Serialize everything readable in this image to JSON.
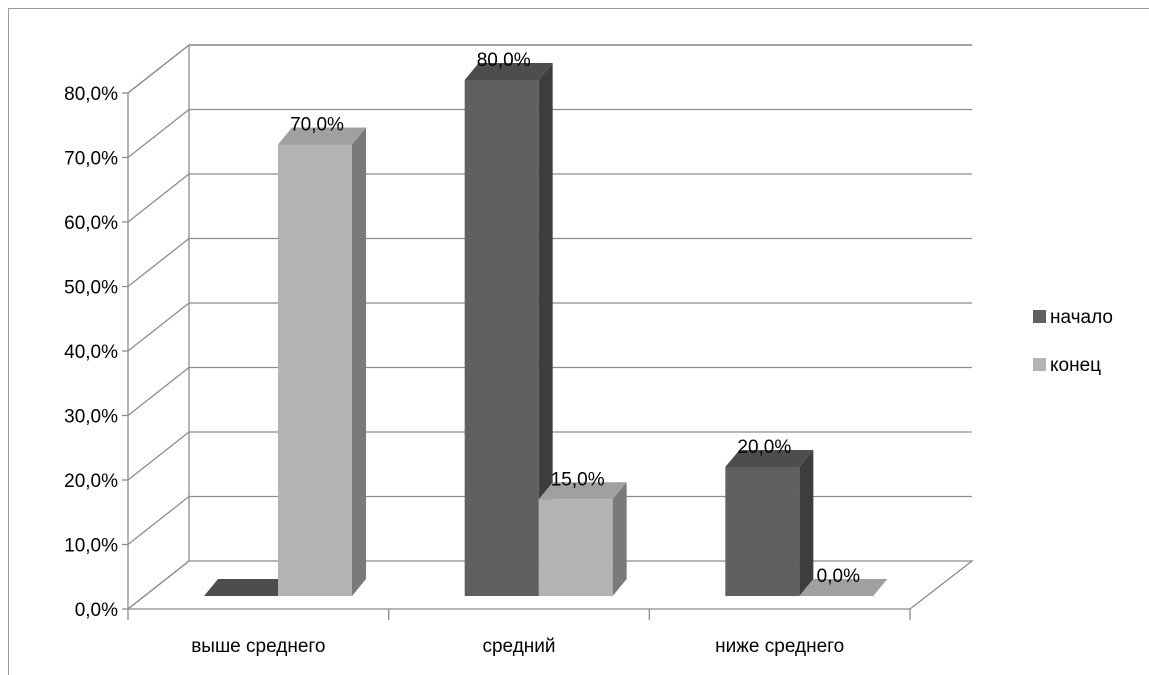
{
  "chart_data": {
    "type": "bar",
    "categories": [
      "выше среднего",
      "средний",
      "ниже среднего"
    ],
    "series": [
      {
        "name": "начало",
        "values": [
          0.0,
          80.0,
          20.0
        ]
      },
      {
        "name": "конец",
        "values": [
          70.0,
          15.0,
          0.0
        ]
      }
    ],
    "data_labels": [
      [
        "",
        "80,0%",
        "20,0%"
      ],
      [
        "70,0%",
        "15,0%",
        "0,0%"
      ]
    ],
    "yticks": [
      0,
      10,
      20,
      30,
      40,
      50,
      60,
      70,
      80
    ],
    "ytick_labels": [
      "0,0%",
      "10,0%",
      "20,0%",
      "30,0%",
      "40,0%",
      "50,0%",
      "60,0%",
      "70,0%",
      "80,0%"
    ],
    "ylim": [
      0,
      80
    ],
    "grid": true,
    "legend_position": "right",
    "style": "3d-column",
    "title": "",
    "xlabel": "",
    "ylabel": ""
  },
  "colors": {
    "series_front": [
      "#606060",
      "#b3b3b3"
    ],
    "series_top": [
      "#4d4d4d",
      "#a0a0a0"
    ],
    "series_side": [
      "#3d3d3d",
      "#7a7a7a"
    ],
    "gridline": "#8c8c8c",
    "axis": "#8c8c8c"
  }
}
